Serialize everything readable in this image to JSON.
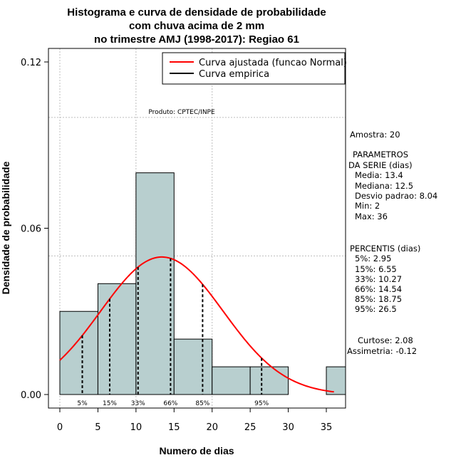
{
  "chart_data": {
    "type": "bar",
    "title": [
      "Histograma e curva de densidade de probabilidade",
      "com chuva acima de 2 mm",
      "no trimestre AMJ (1998-2017): Regiao 61"
    ],
    "xlabel": "Numero de dias",
    "ylabel": "Densidade de probabilidade",
    "xlim": [
      -1.5,
      37.5
    ],
    "ylim": [
      -0.005,
      0.125
    ],
    "xticks": [
      0,
      5,
      10,
      15,
      20,
      25,
      30,
      35
    ],
    "yticks": [
      0.0,
      0.06,
      0.12
    ],
    "ytick_labels": [
      "0.00",
      "0.06",
      "0.12"
    ],
    "bins": [
      {
        "x0": 0,
        "x1": 5,
        "density": 0.03
      },
      {
        "x0": 5,
        "x1": 10,
        "density": 0.04
      },
      {
        "x0": 10,
        "x1": 15,
        "density": 0.08
      },
      {
        "x0": 15,
        "x1": 20,
        "density": 0.02
      },
      {
        "x0": 20,
        "x1": 25,
        "density": 0.01
      },
      {
        "x0": 25,
        "x1": 30,
        "density": 0.01
      },
      {
        "x0": 30,
        "x1": 35,
        "density": 0.0
      },
      {
        "x0": 35,
        "x1": 40,
        "density": 0.01
      }
    ],
    "normal_curve": {
      "mean": 13.4,
      "sd": 8.04,
      "x_range": [
        0,
        36
      ],
      "color": "#ff0000"
    },
    "percentiles": [
      {
        "label": "5%",
        "value": 2.95
      },
      {
        "label": "15%",
        "value": 6.55
      },
      {
        "label": "33%",
        "value": 10.27
      },
      {
        "label": "66%",
        "value": 14.54
      },
      {
        "label": "85%",
        "value": 18.75
      },
      {
        "label": "95%",
        "value": 26.5
      }
    ],
    "legend": [
      {
        "label": "Curva ajustada (funcao Normal)",
        "color": "#ff0000"
      },
      {
        "label": "Curva empirica",
        "color": "#000000"
      }
    ],
    "annotation": "Produto: CPTEC/INPE",
    "bar_fill": "#b8cfcf",
    "grid_v": [
      0,
      10,
      20
    ],
    "grid_h": [
      0.05,
      0.1
    ]
  },
  "sidebar": {
    "amostra": "Amostra: 20",
    "params_title_1": "PARAMETROS",
    "params_title_2": "DA SERIE (dias)",
    "media": "Media: 13.4",
    "mediana": "Mediana: 12.5",
    "desvio": "Desvio padrao: 8.04",
    "min": "Min: 2",
    "max": "Max: 36",
    "percentis_title": "PERCENTIS (dias)",
    "p5": "5%: 2.95",
    "p15": "15%: 6.55",
    "p33": "33%: 10.27",
    "p66": "66%: 14.54",
    "p85": "85%: 18.75",
    "p95": "95%: 26.5",
    "curtose": "Curtose: 2.08",
    "assimetria": "Assimetria: -0.12"
  }
}
